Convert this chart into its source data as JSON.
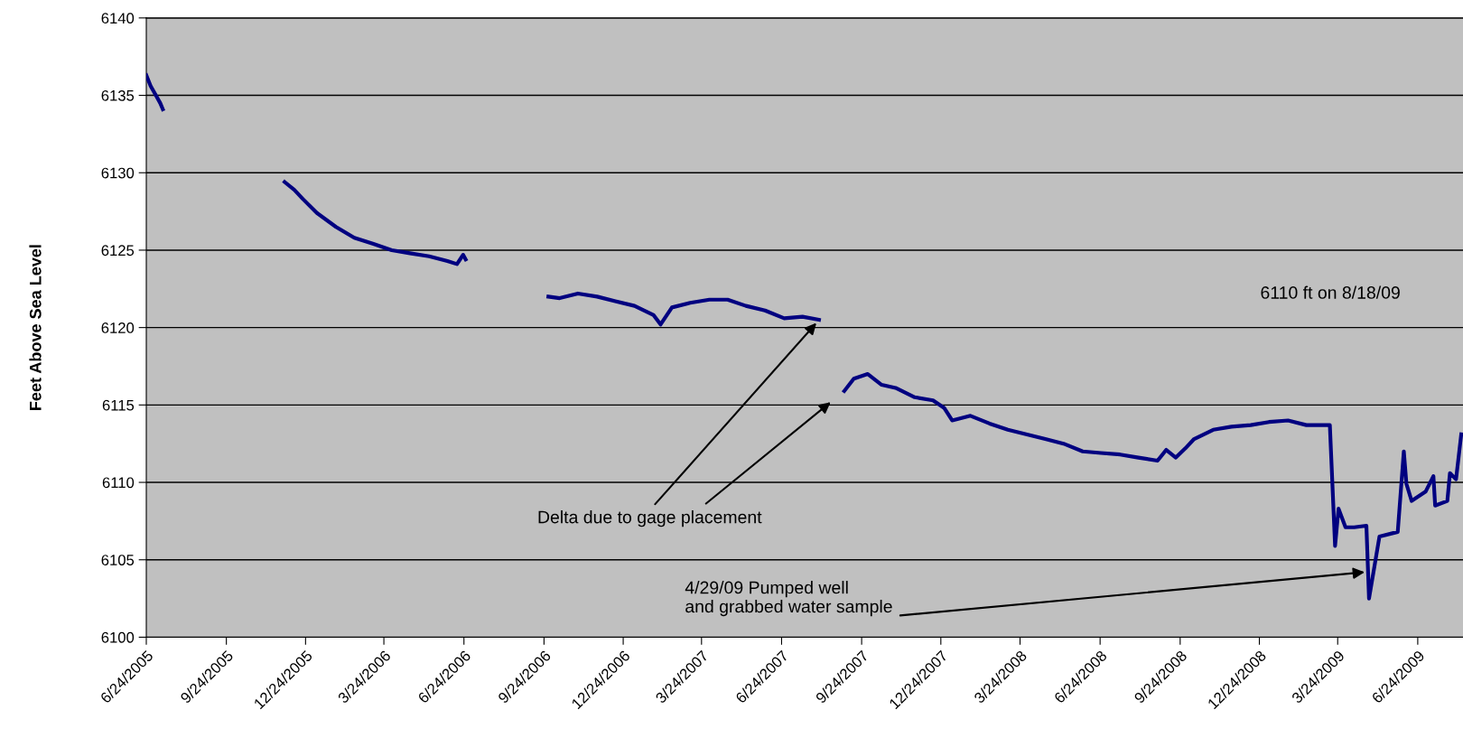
{
  "chart_data": {
    "type": "line",
    "ylabel": "Feet Above Sea Level",
    "x": [
      "2005-06-24",
      "2005-06-29",
      "2005-07-05",
      "2005-07-10",
      "2005-07-13",
      "2005-09-15",
      "2005-11-30",
      "2005-12-11",
      "2005-12-21",
      "2006-01-06",
      "2006-01-28",
      "2006-02-18",
      "2006-03-12",
      "2006-04-02",
      "2006-04-23",
      "2006-05-15",
      "2006-06-05",
      "2006-06-16",
      "2006-06-23",
      "2006-06-26",
      "2006-08-10",
      "2006-09-29",
      "2006-10-12",
      "2006-11-02",
      "2006-11-24",
      "2006-12-15",
      "2007-01-06",
      "2007-01-28",
      "2007-02-05",
      "2007-02-18",
      "2007-03-11",
      "2007-04-02",
      "2007-04-23",
      "2007-05-14",
      "2007-06-05",
      "2007-06-27",
      "2007-07-18",
      "2007-08-06",
      "2007-08-20",
      "2007-09-04",
      "2007-09-15",
      "2007-10-01",
      "2007-10-17",
      "2007-11-02",
      "2007-11-24",
      "2007-12-15",
      "2007-12-28",
      "2008-01-06",
      "2008-01-27",
      "2008-02-18",
      "2008-03-10",
      "2008-04-01",
      "2008-04-22",
      "2008-05-13",
      "2008-06-04",
      "2008-06-25",
      "2008-07-17",
      "2008-08-07",
      "2008-08-29",
      "2008-09-08",
      "2008-09-19",
      "2008-09-30",
      "2008-10-10",
      "2008-11-01",
      "2008-11-22",
      "2008-12-14",
      "2009-01-04",
      "2009-01-26",
      "2009-02-16",
      "2009-03-15",
      "2009-03-21",
      "2009-03-25",
      "2009-04-02",
      "2009-04-12",
      "2009-04-26",
      "2009-04-29",
      "2009-05-11",
      "2009-06-01",
      "2009-06-08",
      "2009-06-11",
      "2009-06-17",
      "2009-07-03",
      "2009-07-12",
      "2009-07-14",
      "2009-07-28",
      "2009-07-31",
      "2009-08-07",
      "2009-08-13"
    ],
    "series": [
      {
        "color": "#000080",
        "values": [
          6136.3,
          6135.6,
          6135.0,
          6134.5,
          6134.1,
          null,
          6129.4,
          6128.9,
          6128.3,
          6127.4,
          6126.5,
          6125.8,
          6125.4,
          6125.0,
          6124.8,
          6124.6,
          6124.3,
          6124.1,
          6124.7,
          6124.4,
          null,
          6122.0,
          6121.9,
          6122.2,
          6122.0,
          6121.7,
          6121.4,
          6120.8,
          6120.2,
          6121.3,
          6121.6,
          6121.8,
          6121.8,
          6121.4,
          6121.1,
          6120.6,
          6120.7,
          6120.5,
          null,
          6115.9,
          6116.7,
          6117.0,
          6116.3,
          6116.1,
          6115.5,
          6115.3,
          6114.8,
          6114.0,
          6114.3,
          6113.8,
          6113.4,
          6113.1,
          6112.8,
          6112.5,
          6112.0,
          6111.9,
          6111.8,
          6111.6,
          6111.4,
          6112.1,
          6111.6,
          6112.2,
          6112.8,
          6113.4,
          6113.6,
          6113.7,
          6113.9,
          6114.0,
          6113.7,
          6113.7,
          6105.9,
          6108.3,
          6107.1,
          6107.1,
          6107.2,
          6102.5,
          6106.5,
          6106.8,
          6112.0,
          6109.9,
          6108.8,
          6109.4,
          6110.4,
          6108.5,
          6108.8,
          6110.6,
          6110.2,
          6113.1
        ]
      }
    ],
    "xlim": [
      "2005-06-24",
      "2009-08-15"
    ],
    "xticks": [
      {
        "value": "2005-06-24",
        "label": "6/24/2005"
      },
      {
        "value": "2005-09-24",
        "label": "9/24/2005"
      },
      {
        "value": "2005-12-24",
        "label": "12/24/2005"
      },
      {
        "value": "2006-03-24",
        "label": "3/24/2006"
      },
      {
        "value": "2006-06-24",
        "label": "6/24/2006"
      },
      {
        "value": "2006-09-24",
        "label": "9/24/2006"
      },
      {
        "value": "2006-12-24",
        "label": "12/24/2006"
      },
      {
        "value": "2007-03-24",
        "label": "3/24/2007"
      },
      {
        "value": "2007-06-24",
        "label": "6/24/2007"
      },
      {
        "value": "2007-09-24",
        "label": "9/24/2007"
      },
      {
        "value": "2007-12-24",
        "label": "12/24/2007"
      },
      {
        "value": "2008-03-24",
        "label": "3/24/2008"
      },
      {
        "value": "2008-06-24",
        "label": "6/24/2008"
      },
      {
        "value": "2008-09-24",
        "label": "9/24/2008"
      },
      {
        "value": "2008-12-24",
        "label": "12/24/2008"
      },
      {
        "value": "2009-03-24",
        "label": "3/24/2009"
      },
      {
        "value": "2009-06-24",
        "label": "6/24/2009"
      }
    ],
    "ylim": [
      6100,
      6140
    ],
    "yticks": [
      6100,
      6105,
      6110,
      6115,
      6120,
      6125,
      6130,
      6135,
      6140
    ],
    "grid": "y",
    "marker": "none",
    "line_style": "solid",
    "annotations": [
      {
        "text": "Delta due to gage placement",
        "x": "2007-08-03",
        "y": 6120.3
      },
      {
        "text": "4/29/09 Pumped well\nand grabbed water sample",
        "x": "2009-04-24",
        "y": 6104.2
      },
      "6110 ft on 8/18/09"
    ]
  }
}
